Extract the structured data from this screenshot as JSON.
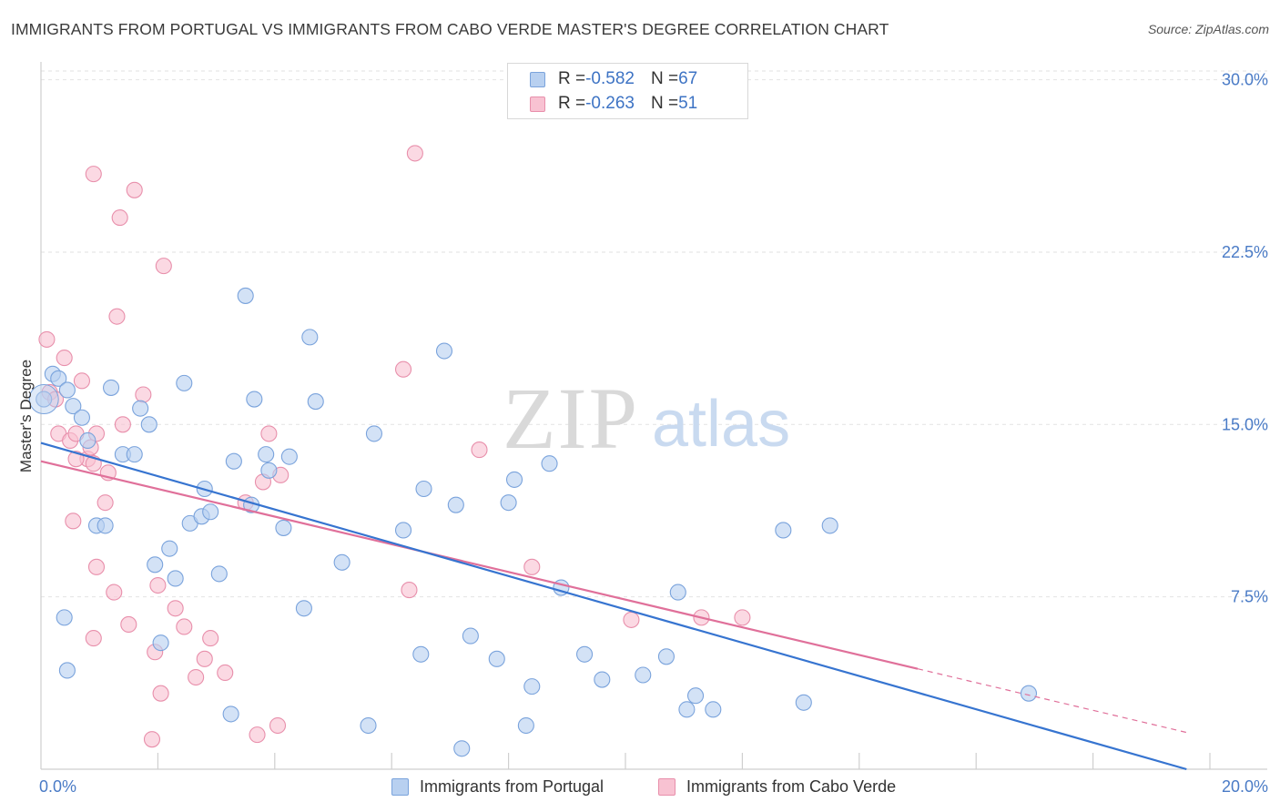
{
  "header": {
    "title": "IMMIGRANTS FROM PORTUGAL VS IMMIGRANTS FROM CABO VERDE MASTER'S DEGREE CORRELATION CHART",
    "source": "Source: ZipAtlas.com"
  },
  "watermark": {
    "zip": "ZIP",
    "atlas": "atlas"
  },
  "legend": {
    "series": [
      {
        "r_label": "R = ",
        "r_value": "-0.582",
        "n_label": "N = ",
        "n_value": "67"
      },
      {
        "r_label": "R = ",
        "r_value": "-0.263",
        "n_label": "N = ",
        "n_value": "51"
      }
    ]
  },
  "chart_data": {
    "type": "scatter",
    "title": "IMMIGRANTS FROM PORTUGAL VS IMMIGRANTS FROM CABO VERDE MASTER'S DEGREE CORRELATION CHART",
    "xlabel": "",
    "ylabel": "Master's Degree",
    "xlim": [
      0,
      20
    ],
    "ylim": [
      0,
      30.5
    ],
    "x_tick_labels": [
      "0.0%",
      "20.0%"
    ],
    "y_ticks": [
      7.5,
      15.0,
      22.5,
      30.0
    ],
    "y_tick_labels": [
      "7.5%",
      "15.0%",
      "22.5%",
      "30.0%"
    ],
    "grid": true,
    "legend_position": "top-center",
    "colors": {
      "portugal_fill": "#b8d0f0",
      "portugal_stroke": "#7aa3dc",
      "portugal_line": "#3674d0",
      "caboverde_fill": "#f8c2d2",
      "caboverde_stroke": "#e88fab",
      "caboverde_line": "#e0709a"
    },
    "series": [
      {
        "name": "Immigrants from Portugal",
        "r": -0.582,
        "n": 67,
        "trend": {
          "x0": 0.0,
          "y0": 14.2,
          "x1": 19.6,
          "y1": 0.0,
          "solid_until": 19.6
        },
        "points": [
          [
            0.05,
            16.1
          ],
          [
            0.2,
            17.2
          ],
          [
            0.3,
            17.0
          ],
          [
            0.45,
            16.5
          ],
          [
            0.55,
            15.8
          ],
          [
            0.7,
            15.3
          ],
          [
            0.8,
            14.3
          ],
          [
            0.95,
            10.6
          ],
          [
            1.1,
            10.6
          ],
          [
            1.2,
            16.6
          ],
          [
            1.4,
            13.7
          ],
          [
            1.6,
            13.7
          ],
          [
            1.7,
            15.7
          ],
          [
            1.85,
            15.0
          ],
          [
            1.95,
            8.9
          ],
          [
            2.05,
            5.5
          ],
          [
            2.2,
            9.6
          ],
          [
            2.3,
            8.3
          ],
          [
            2.45,
            16.8
          ],
          [
            2.55,
            10.7
          ],
          [
            2.75,
            11.0
          ],
          [
            2.8,
            12.2
          ],
          [
            2.9,
            11.2
          ],
          [
            3.05,
            8.5
          ],
          [
            3.25,
            2.4
          ],
          [
            3.3,
            13.4
          ],
          [
            3.5,
            20.6
          ],
          [
            3.6,
            11.5
          ],
          [
            3.65,
            16.1
          ],
          [
            3.85,
            13.7
          ],
          [
            3.9,
            13.0
          ],
          [
            4.15,
            10.5
          ],
          [
            4.25,
            13.6
          ],
          [
            4.5,
            7.0
          ],
          [
            4.6,
            18.8
          ],
          [
            4.7,
            16.0
          ],
          [
            5.15,
            9.0
          ],
          [
            5.6,
            1.9
          ],
          [
            5.7,
            14.6
          ],
          [
            6.2,
            10.4
          ],
          [
            6.5,
            5.0
          ],
          [
            6.55,
            12.2
          ],
          [
            6.9,
            18.2
          ],
          [
            7.1,
            11.5
          ],
          [
            7.2,
            0.9
          ],
          [
            7.35,
            5.8
          ],
          [
            7.8,
            4.8
          ],
          [
            8.0,
            11.6
          ],
          [
            8.1,
            12.6
          ],
          [
            8.3,
            1.9
          ],
          [
            8.4,
            3.6
          ],
          [
            8.7,
            13.3
          ],
          [
            8.9,
            7.9
          ],
          [
            9.3,
            5.0
          ],
          [
            9.6,
            3.9
          ],
          [
            10.3,
            4.1
          ],
          [
            10.7,
            4.9
          ],
          [
            10.9,
            7.7
          ],
          [
            11.05,
            2.6
          ],
          [
            11.2,
            3.2
          ],
          [
            11.5,
            2.6
          ],
          [
            12.7,
            10.4
          ],
          [
            13.05,
            2.9
          ],
          [
            13.5,
            10.6
          ],
          [
            16.9,
            3.3
          ],
          [
            0.45,
            4.3
          ],
          [
            0.4,
            6.6
          ]
        ]
      },
      {
        "name": "Immigrants from Cabo Verde",
        "r": -0.263,
        "n": 51,
        "trend": {
          "x0": 0.0,
          "y0": 13.4,
          "x1": 19.6,
          "y1": 1.6,
          "solid_until": 15.0
        },
        "points": [
          [
            0.1,
            18.7
          ],
          [
            0.15,
            16.4
          ],
          [
            0.25,
            16.1
          ],
          [
            0.3,
            14.6
          ],
          [
            0.4,
            17.9
          ],
          [
            0.5,
            14.3
          ],
          [
            0.55,
            10.8
          ],
          [
            0.6,
            14.6
          ],
          [
            0.7,
            16.9
          ],
          [
            0.8,
            13.5
          ],
          [
            0.9,
            13.3
          ],
          [
            0.95,
            14.6
          ],
          [
            0.9,
            25.9
          ],
          [
            0.9,
            5.7
          ],
          [
            0.95,
            8.8
          ],
          [
            1.1,
            11.6
          ],
          [
            1.15,
            12.9
          ],
          [
            1.25,
            7.7
          ],
          [
            1.3,
            19.7
          ],
          [
            1.35,
            24.0
          ],
          [
            1.4,
            15.0
          ],
          [
            1.5,
            6.3
          ],
          [
            1.6,
            25.2
          ],
          [
            1.75,
            16.3
          ],
          [
            1.9,
            1.3
          ],
          [
            1.95,
            5.1
          ],
          [
            2.0,
            8.0
          ],
          [
            2.05,
            3.3
          ],
          [
            2.1,
            21.9
          ],
          [
            2.3,
            7.0
          ],
          [
            2.45,
            6.2
          ],
          [
            2.65,
            4.0
          ],
          [
            2.8,
            4.8
          ],
          [
            2.9,
            5.7
          ],
          [
            3.15,
            4.2
          ],
          [
            3.5,
            11.6
          ],
          [
            3.7,
            1.5
          ],
          [
            3.8,
            12.5
          ],
          [
            3.9,
            14.6
          ],
          [
            4.05,
            1.9
          ],
          [
            4.1,
            12.8
          ],
          [
            6.2,
            17.4
          ],
          [
            6.3,
            7.8
          ],
          [
            6.4,
            26.8
          ],
          [
            7.5,
            13.9
          ],
          [
            8.4,
            8.8
          ],
          [
            10.1,
            6.5
          ],
          [
            11.3,
            6.6
          ],
          [
            12.0,
            6.6
          ],
          [
            0.6,
            13.5
          ],
          [
            0.85,
            14.0
          ]
        ]
      }
    ]
  },
  "bottom_legend": {
    "portugal_label": "Immigrants from Portugal",
    "caboverde_label": "Immigrants from Cabo Verde"
  }
}
